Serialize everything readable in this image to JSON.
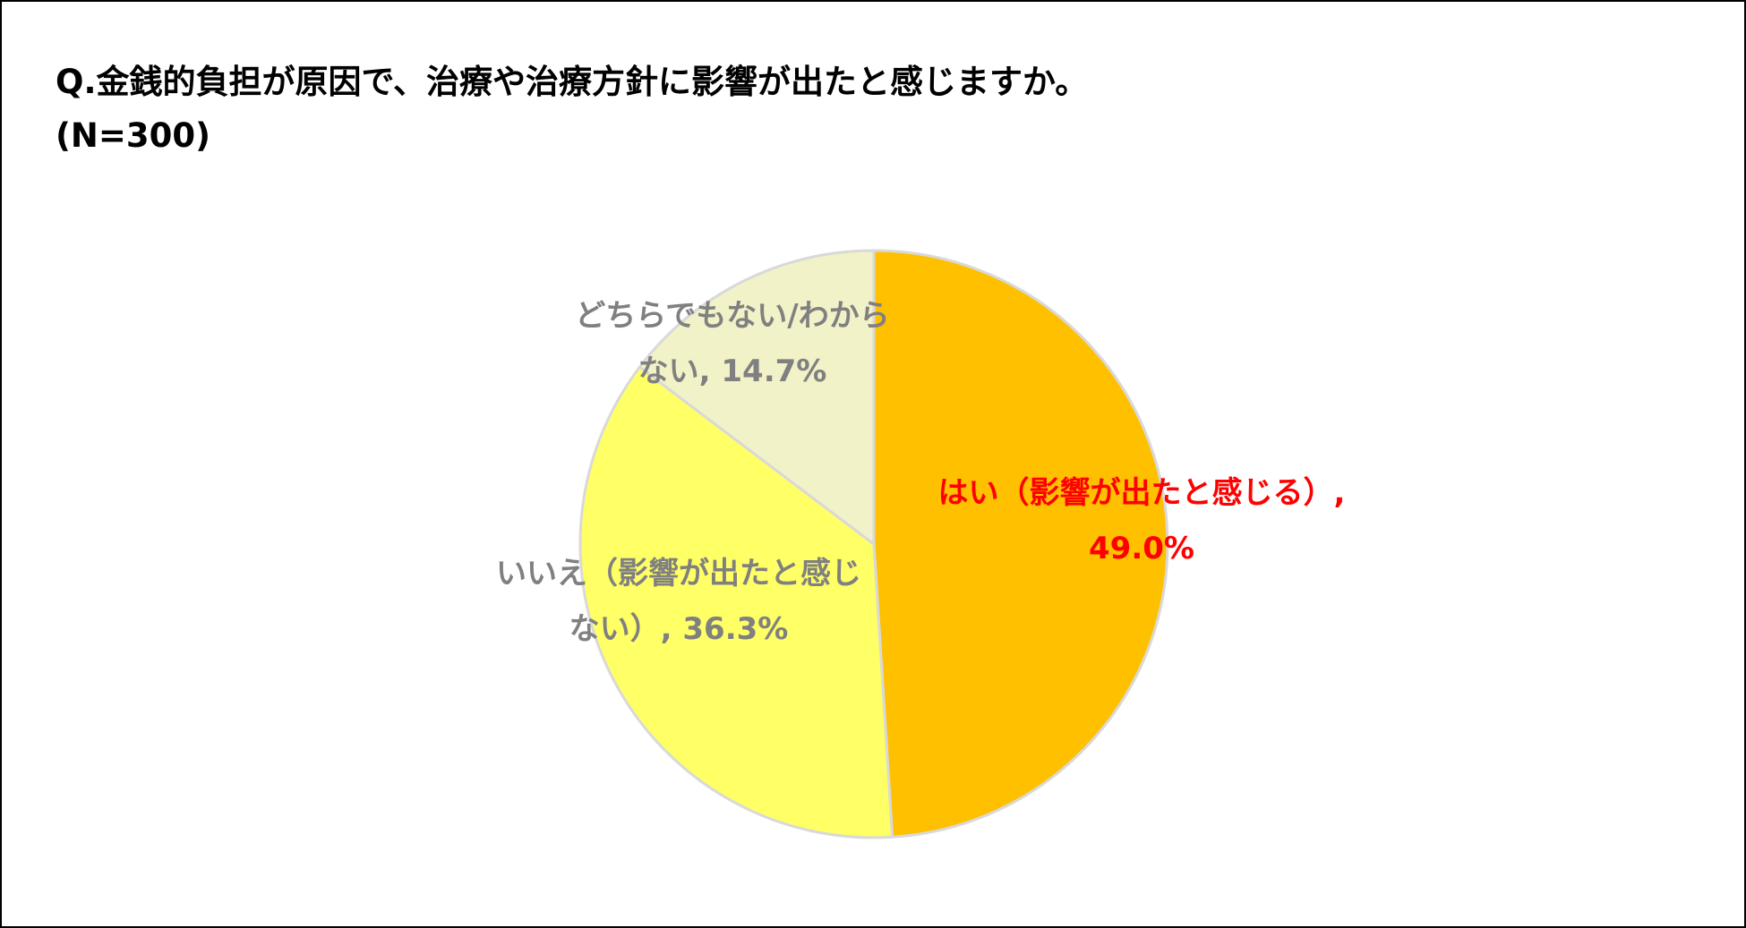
{
  "chart_data": {
    "type": "pie",
    "title": "Q.金銭的負担が原因で、治療や治療方針に影響が出たと感じますか。",
    "subtitle": "(N=300)",
    "slices": [
      {
        "label": "はい（影響が出たと感じる）",
        "value": 49.0,
        "value_text": "49.0%",
        "color": "#FFC000",
        "label_color": "#FF0000",
        "label_lines": [
          "はい（影響が出たと感じる）,",
          "49.0%"
        ]
      },
      {
        "label": "いいえ（影響が出たと感じない）",
        "value": 36.3,
        "value_text": "36.3%",
        "color": "#FFFF66",
        "label_color": "#808080",
        "label_lines": [
          "いいえ（影響が出たと感じ",
          "ない）, 36.3%"
        ]
      },
      {
        "label": "どちらでもない/わからない",
        "value": 14.7,
        "value_text": "14.7%",
        "color": "#F2F2C8",
        "label_color": "#808080",
        "label_lines": [
          "どちらでもない/わから",
          "ない, 14.7%"
        ]
      }
    ],
    "start_angle": "12 o'clock",
    "direction": "clockwise",
    "slice_border_color": "#D9D9D9",
    "legend": "none"
  }
}
